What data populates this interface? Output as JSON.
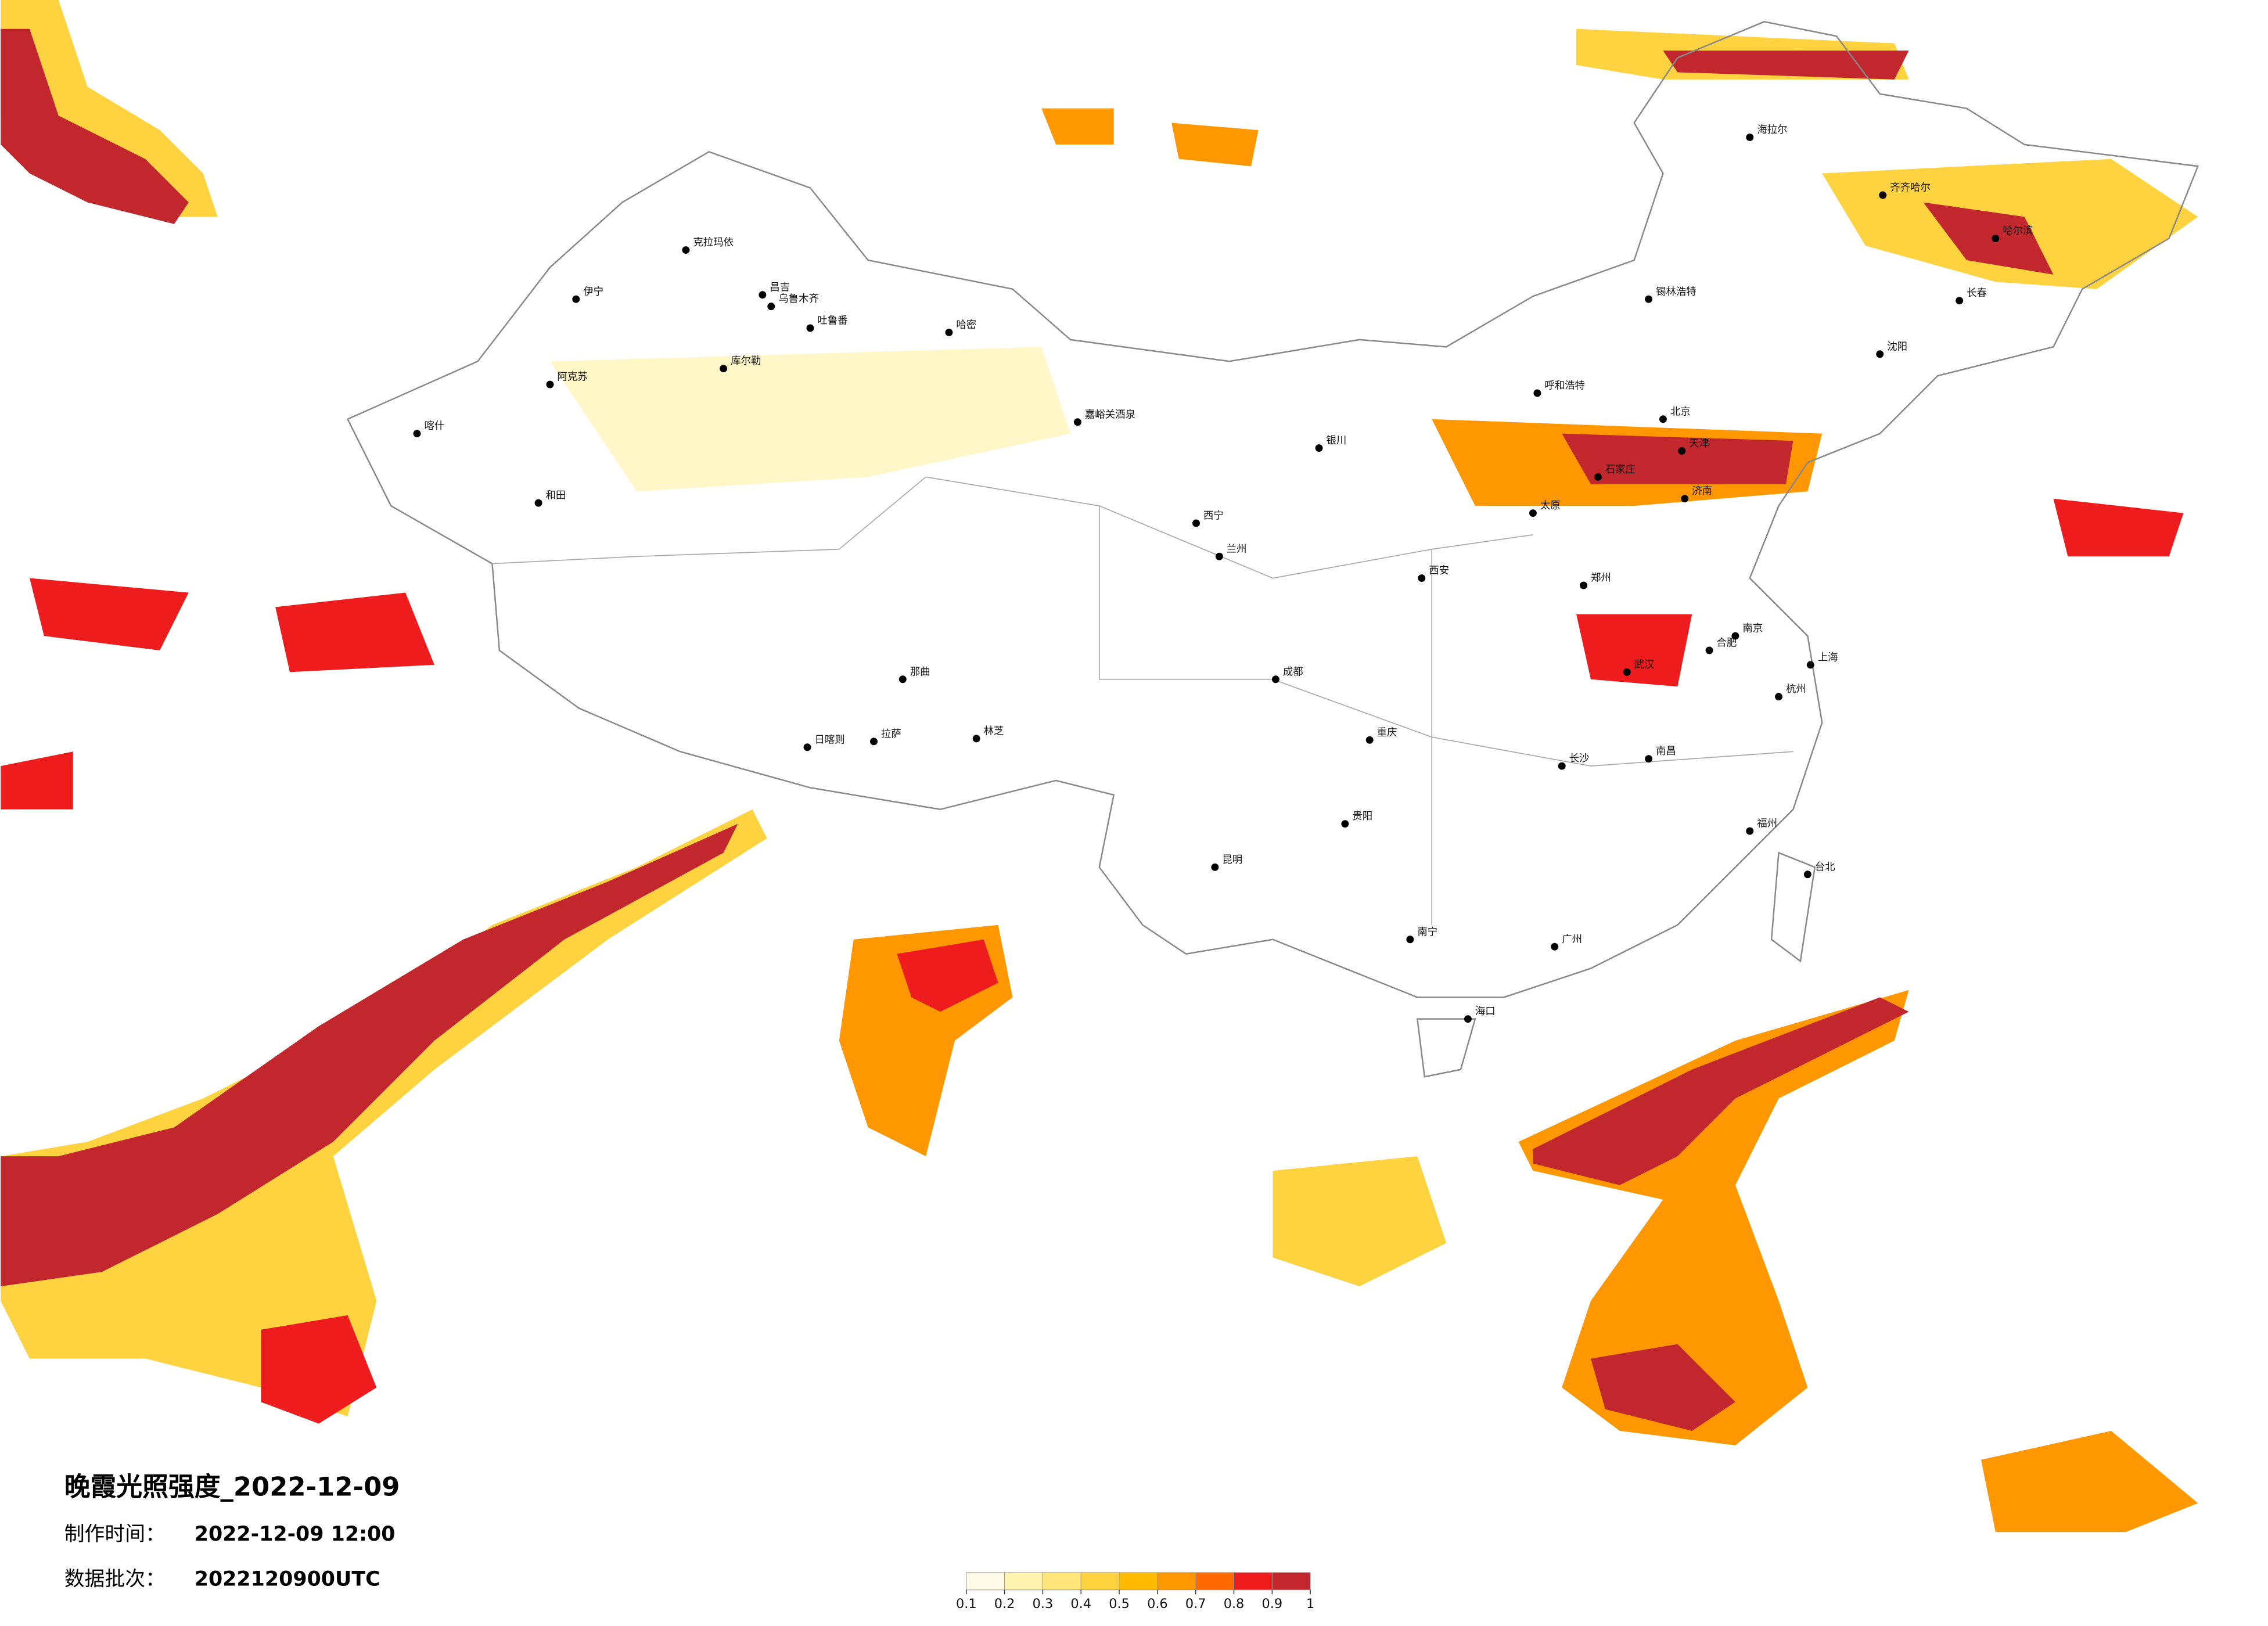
{
  "header": {
    "title": "晚霞光照强度_2022-12-09",
    "made_label": "制作时间：",
    "made_time": "2022-12-09 12:00",
    "batch_label": "数据批次：",
    "batch": "2022120900UTC"
  },
  "legend": {
    "ticks": [
      0.1,
      0.2,
      0.3,
      0.4,
      0.5,
      0.6,
      0.7,
      0.8,
      0.9,
      1
    ],
    "colors": [
      "#fffbe6",
      "#fff3b0",
      "#ffe57a",
      "#ffd23f",
      "#ffbb00",
      "#ff9800",
      "#ff6a00",
      "#ee1c1c",
      "#c1272d"
    ]
  },
  "cities": [
    "克拉玛依",
    "昌吉",
    "乌鲁木齐",
    "伊宁",
    "阿克苏",
    "喀什",
    "和田",
    "哈密",
    "库尔勒",
    "吐鲁番",
    "拉萨",
    "日喀则",
    "那曲",
    "林芝",
    "嘉峪关酒泉",
    "西宁",
    "兰州",
    "银川",
    "呼和浩特",
    "北京",
    "天津",
    "石家庄",
    "太原",
    "济南",
    "郑州",
    "西安",
    "成都",
    "重庆",
    "武汉",
    "长沙",
    "南昌",
    "合肥",
    "南京",
    "上海",
    "杭州",
    "福州",
    "广州",
    "南宁",
    "昆明",
    "贵阳",
    "海口",
    "台北",
    "哈尔滨",
    "长春",
    "沈阳",
    "齐齐哈尔",
    "海拉尔",
    "锡林浩特"
  ]
}
